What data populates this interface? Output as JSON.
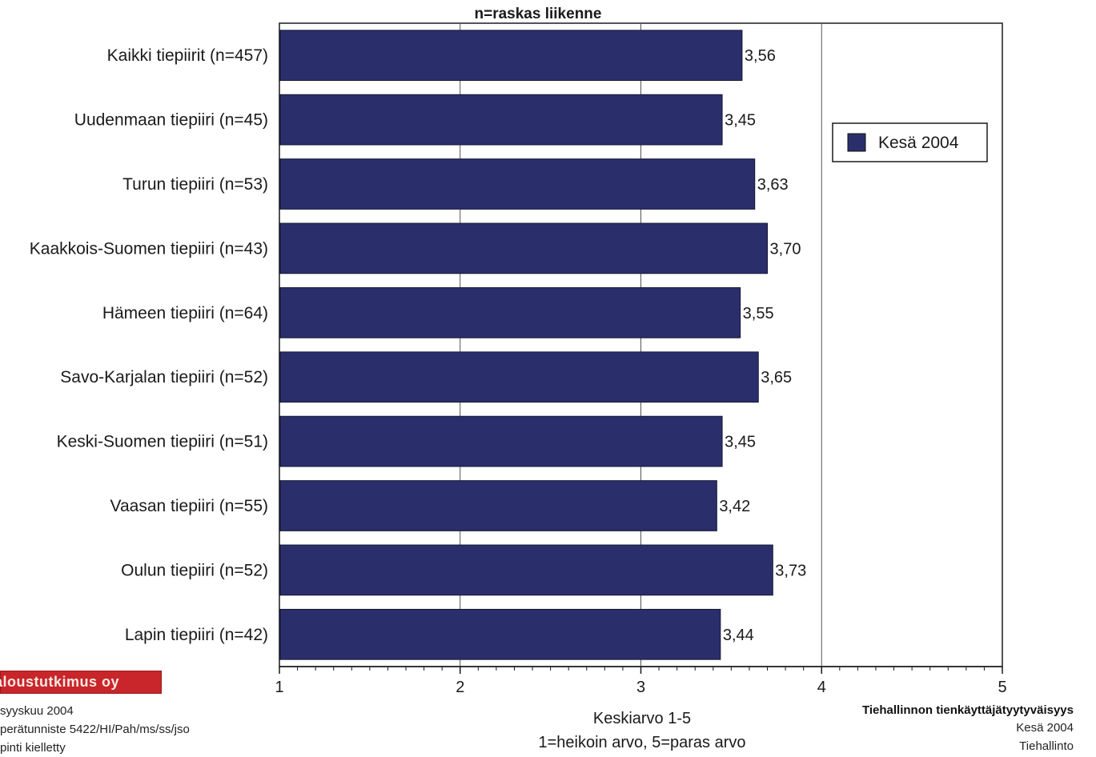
{
  "chart_data": {
    "type": "bar",
    "orientation": "horizontal",
    "title": "n=raskas liikenne",
    "categories": [
      "Kaikki tiepiirit (n=457)",
      "Uudenmaan tiepiiri (n=45)",
      "Turun tiepiiri (n=53)",
      "Kaakkois-Suomen tiepiiri (n=43)",
      "Hämeen tiepiiri (n=64)",
      "Savo-Karjalan tiepiiri (n=52)",
      "Keski-Suomen tiepiiri (n=51)",
      "Vaasan tiepiiri (n=55)",
      "Oulun tiepiiri (n=52)",
      "Lapin tiepiiri (n=42)"
    ],
    "series": [
      {
        "name": "Kesä 2004",
        "values": [
          3.56,
          3.45,
          3.63,
          3.7,
          3.55,
          3.65,
          3.45,
          3.42,
          3.73,
          3.44
        ],
        "value_labels": [
          "3,56",
          "3,45",
          "3,63",
          "3,70",
          "3,55",
          "3,65",
          "3,45",
          "3,42",
          "3,73",
          "3,44"
        ],
        "color": "#2a2f6b"
      }
    ],
    "xlim": [
      1,
      5
    ],
    "xticks": [
      "1",
      "2",
      "3",
      "4",
      "5"
    ],
    "xlabel": "Keskiarvo 1-5",
    "xlabel_sub": "1=heikoin arvo, 5=paras arvo",
    "grid": true,
    "legend_position": "right"
  },
  "footer_left": {
    "brand": "aloustutkimus oy",
    "lines": [
      "syyskuu 2004",
      "perätunniste 5422/HI/Pah/ms/ss/jso",
      "pinti kielletty"
    ]
  },
  "footer_right": {
    "title": "Tiehallinnon tienkäyttäjätyytyväisyys",
    "lines": [
      "Kesä 2004",
      "Tiehallinto"
    ]
  }
}
